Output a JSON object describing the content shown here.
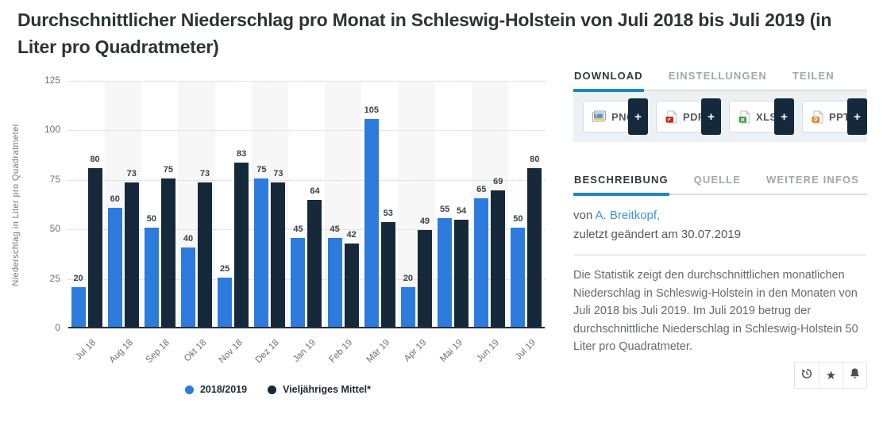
{
  "page": {
    "title": "Durchschnittlicher Niederschlag pro Monat in Schleswig-Holstein von Juli 2018 bis Juli 2019 (in Liter pro Quadratmeter)"
  },
  "chart_data": {
    "type": "bar",
    "title": "Durchschnittlicher Niederschlag pro Monat in Schleswig-Holstein von Juli 2018 bis Juli 2019 (in Liter pro Quadratmeter)",
    "categories": [
      "Jul 18",
      "Aug 18",
      "Sep 18",
      "Okt 18",
      "Nov 18",
      "Dez 18",
      "Jan 19",
      "Feb 19",
      "Mär 19",
      "Apr 19",
      "Mai 19",
      "Jun 19",
      "Jul 19"
    ],
    "series": [
      {
        "name": "2018/2019",
        "color": "#2c7bdd",
        "values": [
          20,
          60,
          50,
          40,
          25,
          75,
          45,
          45,
          105,
          20,
          55,
          65,
          50
        ]
      },
      {
        "name": "Vieljähriges Mittel*",
        "color": "#16293b",
        "values": [
          80,
          73,
          75,
          73,
          83,
          73,
          64,
          42,
          53,
          49,
          54,
          69,
          80
        ]
      }
    ],
    "xlabel": "",
    "ylabel": "Niederschlag in Liter pro Quadratmeter",
    "ylim": [
      0,
      125
    ],
    "yticks": [
      0,
      25,
      50,
      75,
      100,
      125
    ],
    "grid": "horizontal dotted",
    "plot_bands": "alternating light column stripes",
    "legend_position": "bottom center",
    "value_labels": true
  },
  "panel": {
    "tabs_primary": [
      {
        "label": "DOWNLOAD",
        "active": true
      },
      {
        "label": "EINSTELLUNGEN",
        "active": false
      },
      {
        "label": "TEILEN",
        "active": false
      }
    ],
    "download_buttons": [
      {
        "label": "PNG",
        "icon": "png-image-icon",
        "plus": "+"
      },
      {
        "label": "PDF",
        "icon": "pdf-file-icon",
        "plus": "+"
      },
      {
        "label": "XLS",
        "icon": "xls-file-icon",
        "plus": "+"
      },
      {
        "label": "PPT",
        "icon": "ppt-file-icon",
        "plus": "+"
      }
    ],
    "tabs_secondary": [
      {
        "label": "BESCHREIBUNG",
        "active": true
      },
      {
        "label": "QUELLE",
        "active": false
      },
      {
        "label": "WEITERE INFOS",
        "active": false
      }
    ],
    "byline": {
      "prefix": "von ",
      "author": "A. Breitkopf,",
      "updated": "zuletzt geändert am 30.07.2019"
    },
    "description": "Die Statistik zeigt den durchschnittlichen monatlichen Niederschlag in Schleswig-Holstein in den Monaten von Juli 2018 bis Juli 2019. Im Juli 2019 betrug der durchschnittliche Niederschlag in Schleswig-Holstein 50 Liter pro Quadratmeter.",
    "actions": [
      "history-icon",
      "star-icon",
      "bell-icon"
    ]
  },
  "colors": {
    "series_blue": "#2c7bdd",
    "series_navy": "#16293b",
    "accent_blue": "#1e86c8",
    "link_blue": "#3e96d2",
    "plus_block": "#15293c",
    "stripe": "#f7f7f7"
  }
}
